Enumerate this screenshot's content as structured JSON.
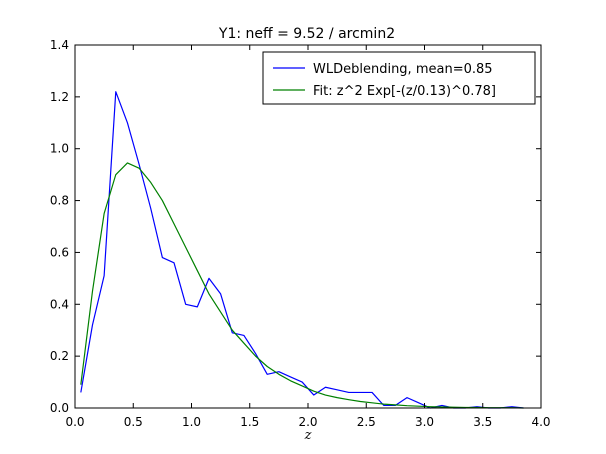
{
  "chart_data": {
    "type": "line",
    "title": "Y1: neff = 9.52 / arcmin2",
    "xlabel": "z",
    "ylabel": "",
    "xlim": [
      0.0,
      4.0
    ],
    "ylim": [
      0.0,
      1.4
    ],
    "xticks": [
      0.0,
      0.5,
      1.0,
      1.5,
      2.0,
      2.5,
      3.0,
      3.5,
      4.0
    ],
    "xtick_labels": [
      "0.0",
      "0.5",
      "1.0",
      "1.5",
      "2.0",
      "2.5",
      "3.0",
      "3.5",
      "4.0"
    ],
    "yticks": [
      0.0,
      0.2,
      0.4,
      0.6,
      0.8,
      1.0,
      1.2,
      1.4
    ],
    "ytick_labels": [
      "0.0",
      "0.2",
      "0.4",
      "0.6",
      "0.8",
      "1.0",
      "1.2",
      "1.4"
    ],
    "grid": false,
    "legend_position": "top-right",
    "series": [
      {
        "name": "WLDeblending, mean=0.85",
        "color": "#0000ff",
        "x": [
          0.05,
          0.15,
          0.25,
          0.35,
          0.45,
          0.55,
          0.65,
          0.75,
          0.85,
          0.95,
          1.05,
          1.15,
          1.25,
          1.35,
          1.45,
          1.55,
          1.65,
          1.75,
          1.85,
          1.95,
          2.05,
          2.15,
          2.25,
          2.35,
          2.45,
          2.55,
          2.65,
          2.75,
          2.85,
          2.95,
          3.05,
          3.15,
          3.25,
          3.35,
          3.45,
          3.55,
          3.65,
          3.75,
          3.85
        ],
        "y": [
          0.06,
          0.32,
          0.51,
          1.22,
          1.1,
          0.94,
          0.77,
          0.58,
          0.56,
          0.4,
          0.39,
          0.5,
          0.44,
          0.29,
          0.28,
          0.21,
          0.13,
          0.14,
          0.12,
          0.1,
          0.05,
          0.08,
          0.07,
          0.06,
          0.06,
          0.06,
          0.01,
          0.01,
          0.04,
          0.02,
          0.0,
          0.01,
          0.0,
          0.0,
          0.005,
          0.0,
          0.0,
          0.005,
          0.0
        ]
      },
      {
        "name": "Fit: z^2 Exp[-(z/0.13)^0.78]",
        "color": "#008000",
        "x": [
          0.05,
          0.15,
          0.25,
          0.35,
          0.45,
          0.55,
          0.65,
          0.75,
          0.85,
          0.95,
          1.05,
          1.15,
          1.25,
          1.35,
          1.45,
          1.55,
          1.65,
          1.75,
          1.85,
          1.95,
          2.05,
          2.15,
          2.25,
          2.35,
          2.45,
          2.55,
          2.65,
          2.75,
          2.85,
          2.95,
          3.05,
          3.15,
          3.25,
          3.35,
          3.45,
          3.55,
          3.65,
          3.75,
          3.85
        ],
        "y": [
          0.09,
          0.45,
          0.75,
          0.9,
          0.945,
          0.925,
          0.87,
          0.8,
          0.71,
          0.62,
          0.53,
          0.44,
          0.37,
          0.3,
          0.25,
          0.2,
          0.16,
          0.13,
          0.105,
          0.085,
          0.065,
          0.05,
          0.04,
          0.032,
          0.025,
          0.02,
          0.015,
          0.012,
          0.009,
          0.007,
          0.005,
          0.004,
          0.003,
          0.002,
          0.002,
          0.001,
          0.001,
          0.001,
          0.0
        ]
      }
    ]
  }
}
